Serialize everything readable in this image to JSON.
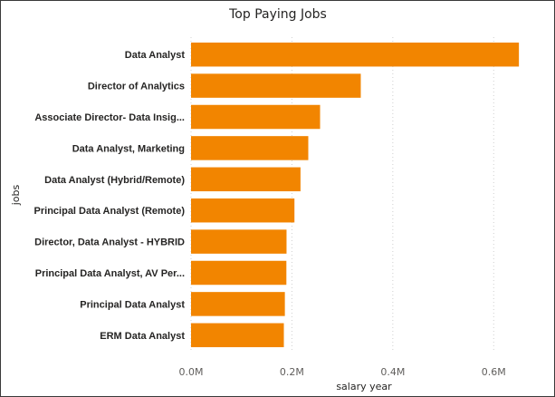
{
  "chart_data": {
    "type": "bar",
    "orientation": "horizontal",
    "title": "Top Paying Jobs",
    "xlabel": "salary year",
    "ylabel": "jobs",
    "categories": [
      "Data Analyst",
      "Director of Analytics",
      "Associate Director- Data Insig...",
      "Data Analyst, Marketing",
      "Data Analyst (Hybrid/Remote)",
      "Principal Data Analyst (Remote)",
      "Director, Data Analyst - HYBRID",
      "Principal Data Analyst, AV Per...",
      "Principal Data Analyst",
      "ERM Data Analyst"
    ],
    "values": [
      650000,
      336500,
      255830,
      232423,
      217000,
      205000,
      189309,
      189000,
      186000,
      184000
    ],
    "xlim": [
      0,
      700000
    ],
    "xticks": [
      0,
      200000,
      400000,
      600000
    ],
    "xtick_labels": [
      "0.0M",
      "0.2M",
      "0.4M",
      "0.6M"
    ],
    "grid": true,
    "bar_color": "#F28500"
  }
}
